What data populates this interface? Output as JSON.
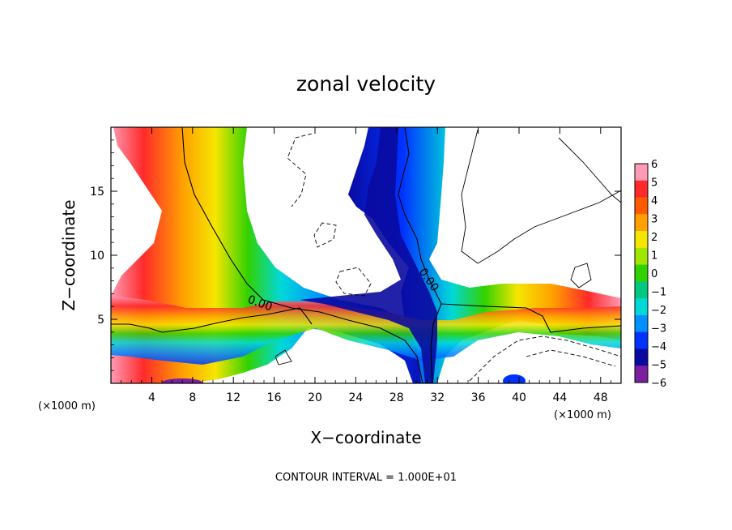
{
  "chart_data": {
    "type": "heatmap",
    "title": "zonal velocity",
    "xlabel": "X−coordinate",
    "ylabel": "Z−coordinate",
    "x_unit": "(×1000 m)",
    "y_unit": "(×1000 m)",
    "xlim": [
      0,
      50
    ],
    "ylim": [
      0,
      20
    ],
    "x_ticks": [
      "4",
      "8",
      "12",
      "16",
      "20",
      "24",
      "28",
      "32",
      "36",
      "40",
      "44",
      "48"
    ],
    "y_ticks": [
      "5",
      "10",
      "15"
    ],
    "colorbar": {
      "ticks": [
        "6",
        "5",
        "4",
        "3",
        "2",
        "1",
        "0",
        "−1",
        "−2",
        "−3",
        "−4",
        "−5",
        "−6"
      ],
      "range": [
        -6,
        6
      ],
      "colors": [
        "#ff9bb4",
        "#ff2a2a",
        "#ff5a00",
        "#ffa000",
        "#f5e600",
        "#a0e600",
        "#32d200",
        "#00c880",
        "#00d8d8",
        "#0090ff",
        "#0032ff",
        "#0a0aa0",
        "#7a1fa0"
      ]
    },
    "contour_labels": [
      "0.00",
      "0.00"
    ],
    "footer": "CONTOUR INTERVAL = 1.000E+01"
  }
}
